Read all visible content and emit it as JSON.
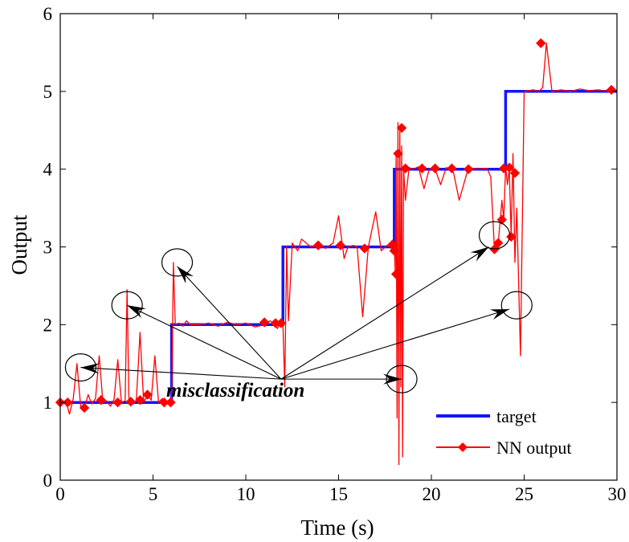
{
  "chart_data": {
    "type": "line",
    "title": "",
    "xlabel": "Time (s)",
    "ylabel": "Output",
    "xlim": [
      0,
      30
    ],
    "ylim": [
      0,
      6
    ],
    "xticks": [
      "0",
      "5",
      "10",
      "15",
      "20",
      "25",
      "30"
    ],
    "yticks": [
      "0",
      "1",
      "2",
      "3",
      "4",
      "5",
      "6"
    ],
    "grid": false,
    "legend_position": "bottom-right",
    "colors": {
      "target": "#1414ff",
      "nn_output": "#ff0000",
      "annotation": "#000000"
    },
    "series": [
      {
        "name": "target",
        "style": "step",
        "x": [
          0,
          6,
          6,
          12,
          12,
          18,
          18,
          24,
          24,
          30
        ],
        "y": [
          1,
          1,
          2,
          2,
          3,
          3,
          4,
          4,
          5,
          5
        ]
      },
      {
        "name": "NN output",
        "marker": "diamond",
        "x": [
          0,
          0.3,
          0.5,
          0.7,
          0.9,
          1.1,
          1.3,
          1.5,
          1.7,
          1.9,
          2.1,
          2.3,
          2.5,
          2.7,
          2.9,
          3.1,
          3.3,
          3.5,
          3.6,
          3.7,
          3.9,
          4.1,
          4.3,
          4.5,
          4.7,
          4.9,
          5.1,
          5.3,
          5.5,
          5.7,
          5.9,
          6.0,
          6.1,
          6.2,
          6.4,
          6.6,
          6.8,
          7,
          7.5,
          8,
          8.5,
          9,
          9.5,
          10,
          10.5,
          11,
          11.3,
          11.5,
          11.7,
          11.9,
          12.0,
          12.1,
          12.2,
          12.3,
          12.5,
          12.8,
          13,
          13.5,
          14,
          14.3,
          14.7,
          15,
          15.3,
          15.5,
          15.8,
          16,
          16.3,
          16.6,
          17,
          17.3,
          17.6,
          17.8,
          17.9,
          18.0,
          18.05,
          18.1,
          18.15,
          18.2,
          18.25,
          18.3,
          18.35,
          18.4,
          18.45,
          18.5,
          18.6,
          18.8,
          19,
          19.3,
          19.6,
          19.9,
          20.2,
          20.5,
          20.8,
          21,
          21.2,
          21.5,
          22,
          22.5,
          23,
          23.2,
          23.4,
          23.6,
          23.8,
          23.9,
          24.0,
          24.1,
          24.2,
          24.3,
          24.4,
          24.5,
          24.6,
          24.8,
          25,
          25.5,
          25.8,
          26,
          26.2,
          26.5,
          27,
          27.5,
          28,
          28.5,
          29,
          29.5,
          30
        ],
        "y": [
          1.0,
          1.02,
          0.85,
          1.05,
          1.5,
          0.95,
          0.93,
          1.1,
          0.98,
          1.05,
          1.6,
          1.0,
          1.02,
          0.95,
          1.04,
          1.55,
          1.0,
          1.02,
          2.45,
          1.05,
          0.98,
          1.02,
          1.9,
          1.0,
          1.1,
          1.03,
          1.6,
          1.0,
          1.05,
          0.98,
          1.02,
          1.0,
          2.8,
          2.0,
          2.02,
          1.98,
          2.05,
          2.0,
          2.0,
          2.02,
          1.98,
          2.03,
          2.0,
          2.02,
          1.97,
          2.0,
          2.05,
          2.02,
          1.95,
          2.03,
          2.0,
          1.2,
          3.0,
          2.05,
          3.05,
          2.95,
          3.1,
          3.0,
          3.02,
          2.98,
          3.05,
          3.4,
          2.85,
          3.0,
          3.02,
          3.0,
          2.1,
          3.0,
          3.45,
          2.95,
          3.02,
          3.0,
          2.95,
          3.05,
          2.65,
          4.2,
          0.8,
          4.6,
          0.2,
          4.53,
          1.2,
          4.3,
          0.3,
          4.0,
          3.6,
          4.02,
          4.0,
          4.03,
          3.75,
          4.01,
          4.0,
          3.8,
          4.02,
          4.0,
          3.95,
          3.6,
          4.02,
          4.0,
          4.01,
          3.9,
          2.97,
          3.05,
          3.6,
          3.35,
          4.03,
          3.8,
          4.01,
          3.13,
          4.2,
          2.8,
          3.5,
          1.6,
          5.0,
          5.02,
          5.0,
          5.05,
          5.62,
          5.0,
          5.02,
          5.0,
          5.03,
          5.01,
          5.02,
          5.0,
          5.02
        ],
        "marker_points": [
          [
            0,
            1.0
          ],
          [
            0.4,
            1.0
          ],
          [
            1.3,
            0.93
          ],
          [
            2.2,
            1.03
          ],
          [
            3.1,
            1.0
          ],
          [
            3.8,
            1.01
          ],
          [
            4.3,
            1.03
          ],
          [
            4.7,
            1.1
          ],
          [
            5.6,
            1.0
          ],
          [
            5.95,
            1.0
          ],
          [
            11.0,
            2.03
          ],
          [
            11.6,
            2.02
          ],
          [
            11.9,
            2.02
          ],
          [
            13.9,
            3.02
          ],
          [
            15.1,
            3.02
          ],
          [
            16.4,
            2.98
          ],
          [
            17.9,
            3.03
          ],
          [
            18.0,
            2.95
          ],
          [
            18.1,
            2.65
          ],
          [
            18.2,
            4.2
          ],
          [
            18.4,
            4.53
          ],
          [
            18.6,
            4.01
          ],
          [
            19.5,
            4.01
          ],
          [
            20.2,
            4.01
          ],
          [
            21.1,
            4.01
          ],
          [
            22.0,
            4.0
          ],
          [
            23.4,
            2.97
          ],
          [
            23.6,
            3.05
          ],
          [
            23.8,
            3.35
          ],
          [
            23.9,
            4.01
          ],
          [
            24.2,
            4.02
          ],
          [
            24.3,
            3.13
          ],
          [
            24.5,
            3.95
          ],
          [
            25.9,
            5.62
          ],
          [
            29.7,
            5.02
          ]
        ]
      }
    ],
    "annotation": {
      "label": "misclassification",
      "source": [
        11.9,
        1.3
      ],
      "targets": [
        [
          1.1,
          1.45
        ],
        [
          3.6,
          2.25
        ],
        [
          6.3,
          2.75
        ],
        [
          18.4,
          1.3
        ],
        [
          23.1,
          3.0
        ],
        [
          24.2,
          2.2
        ]
      ],
      "ellipses": [
        [
          1.1,
          1.45
        ],
        [
          3.6,
          2.25
        ],
        [
          6.3,
          2.8
        ],
        [
          18.4,
          1.3
        ],
        [
          23.4,
          3.15
        ],
        [
          24.6,
          2.25
        ]
      ]
    }
  }
}
